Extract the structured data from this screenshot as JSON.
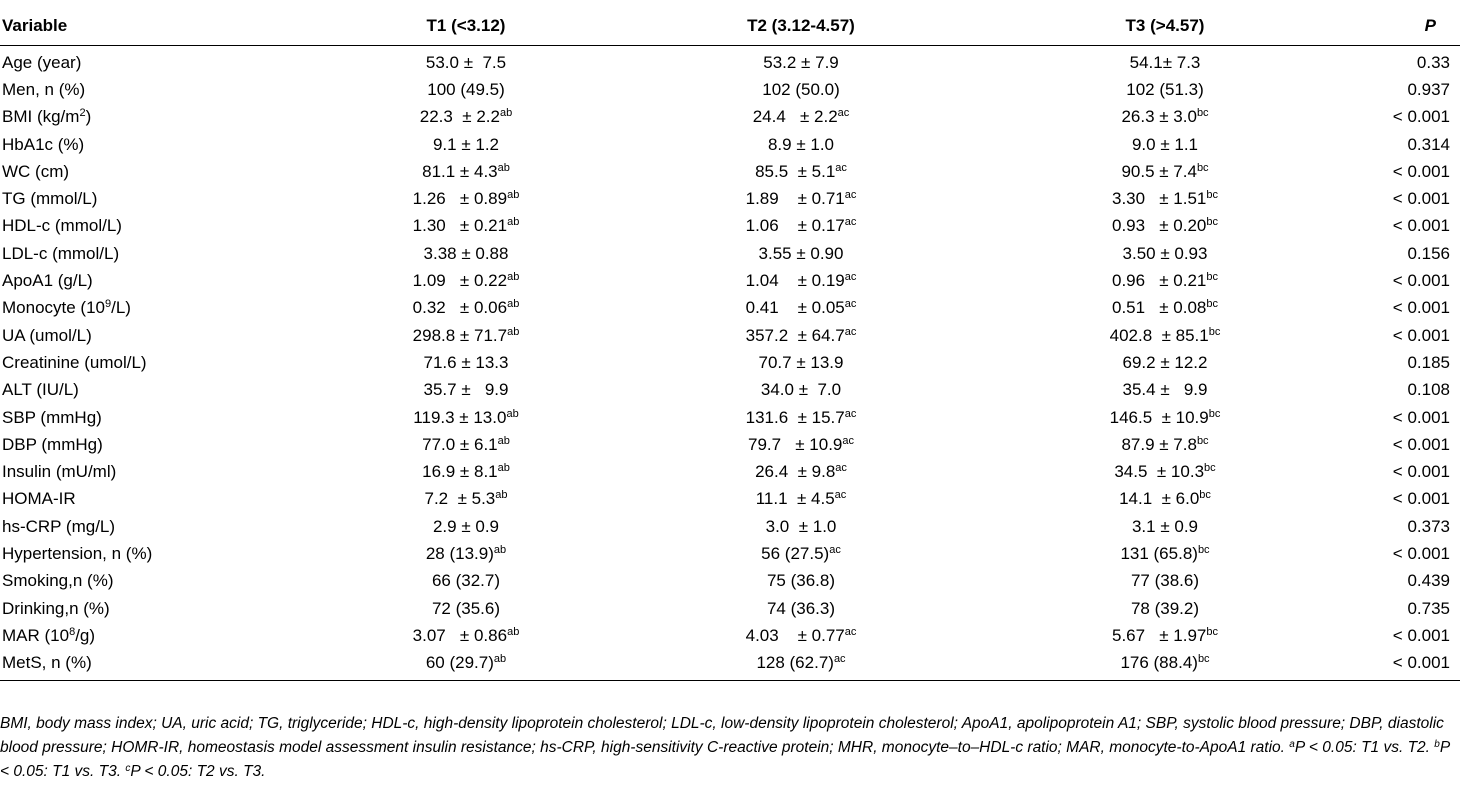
{
  "table": {
    "headers": [
      "Variable",
      "T1 (<3.12)",
      "T2 (3.12-4.57)",
      "T3 (>4.57)",
      "P"
    ],
    "rows": [
      {
        "variable": "Age (year)",
        "t1": "53.0 ±  7.5",
        "t2": "53.2 ± 7.9",
        "t3": "54.1± 7.3",
        "p": "0.33"
      },
      {
        "variable": "Men, n (%)",
        "t1": "100 (49.5)",
        "t2": "102 (50.0)",
        "t3": "102 (51.3)",
        "p": "0.937"
      },
      {
        "variable": "BMI (kg/m",
        "variable_sup": "2",
        "variable_after": ")",
        "t1": "22.3  ± 2.2",
        "t1_sup": "ab",
        "t2": "24.4   ± 2.2",
        "t2_sup": "ac",
        "t3": "26.3 ± 3.0",
        "t3_sup": "bc",
        "p": "< 0.001"
      },
      {
        "variable": "HbA1c (%)",
        "t1": "9.1 ± 1.2",
        "t2": "8.9 ± 1.0",
        "t3": "9.0 ± 1.1",
        "p": "0.314"
      },
      {
        "variable": "WC (cm)",
        "t1": "81.1 ± 4.3",
        "t1_sup": "ab",
        "t2": "85.5  ± 5.1",
        "t2_sup": "ac",
        "t3": "90.5 ± 7.4",
        "t3_sup": "bc",
        "p": "< 0.001"
      },
      {
        "variable": "TG (mmol/L)",
        "t1": "1.26   ± 0.89",
        "t1_sup": "ab",
        "t2": "1.89    ± 0.71",
        "t2_sup": "ac",
        "t3": "3.30   ± 1.51",
        "t3_sup": "bc",
        "p": "< 0.001"
      },
      {
        "variable": "HDL-c (mmol/L)",
        "t1": "1.30   ± 0.21",
        "t1_sup": "ab",
        "t2": "1.06    ± 0.17",
        "t2_sup": "ac",
        "t3": "0.93   ± 0.20",
        "t3_sup": "bc",
        "p": "< 0.001"
      },
      {
        "variable": "LDL-c (mmol/L)",
        "t1": "3.38 ± 0.88",
        "t2": "3.55 ± 0.90",
        "t3": "3.50 ± 0.93",
        "p": "0.156"
      },
      {
        "variable": "ApoA1 (g/L)",
        "t1": "1.09   ± 0.22",
        "t1_sup": "ab",
        "t2": "1.04    ± 0.19",
        "t2_sup": "ac",
        "t3": "0.96   ± 0.21",
        "t3_sup": "bc",
        "p": "< 0.001"
      },
      {
        "variable": "Monocyte (10",
        "variable_sup": "9",
        "variable_after": "/L)",
        "t1": "0.32   ± 0.06",
        "t1_sup": "ab",
        "t2": "0.41    ± 0.05",
        "t2_sup": "ac",
        "t3": "0.51   ± 0.08",
        "t3_sup": "bc",
        "p": "< 0.001"
      },
      {
        "variable": "UA (umol/L)",
        "t1": "298.8 ± 71.7",
        "t1_sup": "ab",
        "t2": "357.2  ± 64.7",
        "t2_sup": "ac",
        "t3": "402.8  ± 85.1",
        "t3_sup": "bc",
        "p": "< 0.001"
      },
      {
        "variable": "Creatinine (umol/L)",
        "t1": "71.6 ± 13.3",
        "t2": "70.7 ± 13.9",
        "t3": "69.2 ± 12.2",
        "p": "0.185"
      },
      {
        "variable": "ALT (IU/L)",
        "t1": "35.7 ±   9.9",
        "t2": "34.0 ±  7.0",
        "t3": "35.4 ±   9.9",
        "p": "0.108"
      },
      {
        "variable": "SBP (mmHg)",
        "t1": "119.3 ± 13.0",
        "t1_sup": "ab",
        "t2": "131.6  ± 15.7",
        "t2_sup": "ac",
        "t3": "146.5  ± 10.9",
        "t3_sup": "bc",
        "p": "< 0.001"
      },
      {
        "variable": "DBP (mmHg)",
        "t1": "77.0 ± 6.1",
        "t1_sup": "ab",
        "t2": "79.7   ± 10.9",
        "t2_sup": "ac",
        "t3": "87.9 ± 7.8",
        "t3_sup": "bc",
        "p": "< 0.001"
      },
      {
        "variable": "Insulin (mU/ml)",
        "t1": "16.9 ± 8.1",
        "t1_sup": "ab",
        "t2": "26.4  ± 9.8",
        "t2_sup": "ac",
        "t3": "34.5  ± 10.3",
        "t3_sup": "bc",
        "p": "< 0.001"
      },
      {
        "variable": "HOMA-IR",
        "t1": "7.2  ± 5.3",
        "t1_sup": "ab",
        "t2": "11.1  ± 4.5",
        "t2_sup": "ac",
        "t3": "14.1  ± 6.0",
        "t3_sup": "bc",
        "p": "< 0.001"
      },
      {
        "variable": "hs-CRP (mg/L)",
        "t1": "2.9 ± 0.9",
        "t2": "3.0  ± 1.0",
        "t3": "3.1 ± 0.9",
        "p": "0.373"
      },
      {
        "variable": "Hypertension, n (%)",
        "t1": "28 (13.9)",
        "t1_sup": "ab",
        "t2": "56 (27.5)",
        "t2_sup": "ac",
        "t3": "131 (65.8)",
        "t3_sup": "bc",
        "p": "< 0.001"
      },
      {
        "variable": "Smoking,n (%)",
        "t1": "66 (32.7)",
        "t2": "75 (36.8)",
        "t3": "77 (38.6)",
        "p": "0.439"
      },
      {
        "variable": "Drinking,n (%)",
        "t1": "72 (35.6)",
        "t2": "74 (36.3)",
        "t3": "78 (39.2)",
        "p": "0.735"
      },
      {
        "variable": "MAR (10",
        "variable_sup": "8",
        "variable_after": "/g)",
        "t1": "3.07   ± 0.86",
        "t1_sup": "ab",
        "t2": "4.03    ± 0.77",
        "t2_sup": "ac",
        "t3": "5.67   ± 1.97",
        "t3_sup": "bc",
        "p": "< 0.001"
      },
      {
        "variable": "MetS, n (%)",
        "t1": "60 (29.7)",
        "t1_sup": "ab",
        "t2": "128 (62.7)",
        "t2_sup": "ac",
        "t3": "176 (88.4)",
        "t3_sup": "bc",
        "p": "< 0.001"
      }
    ]
  },
  "footnote": {
    "text": "BMI, body mass index; UA, uric acid; TG, triglyceride; HDL-c, high-density lipoprotein cholesterol; LDL-c, low-density lipoprotein cholesterol; ApoA1, apolipoprotein A1; SBP, systolic blood pressure; DBP, diastolic blood pressure; HOMR-IR, homeostasis model assessment insulin resistance; hs-CRP, high-sensitivity C-reactive protein; MHR, monocyte–to–HDL-c ratio; MAR, monocyte-to-ApoA1 ratio. ",
    "notes": [
      {
        "sup": "a",
        "text": "P < 0.05: T1 vs. T2. "
      },
      {
        "sup": "b",
        "text": "P < 0.05: T1 vs. T3. "
      },
      {
        "sup": "c",
        "text": "P < 0.05: T2 vs. T3."
      }
    ]
  }
}
